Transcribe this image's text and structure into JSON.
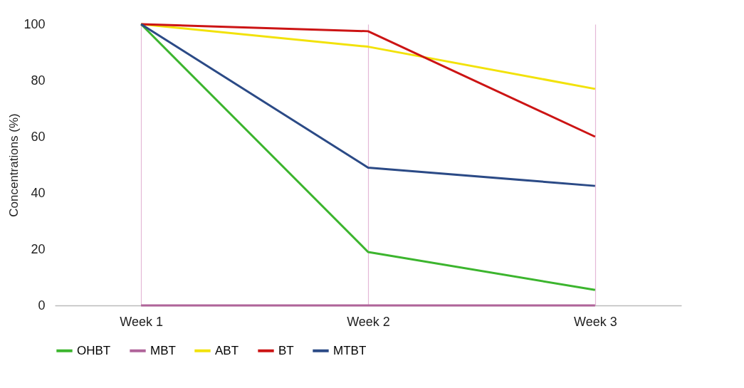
{
  "chart_data": {
    "type": "line",
    "ylabel": "Concentrations (%)",
    "categories": [
      "Week 1",
      "Week 2",
      "Week 3"
    ],
    "series": [
      {
        "name": "OHBT",
        "color": "#3cb52e",
        "values": [
          100,
          19,
          5.5
        ]
      },
      {
        "name": "MBT",
        "color": "#b0649a",
        "values": [
          0,
          0,
          0
        ]
      },
      {
        "name": "ABT",
        "color": "#f2e20a",
        "values": [
          100,
          92,
          77
        ]
      },
      {
        "name": "BT",
        "color": "#cc1414",
        "values": [
          100,
          97.5,
          60
        ]
      },
      {
        "name": "MTBT",
        "color": "#2b4a86",
        "values": [
          100,
          49,
          42.5
        ]
      }
    ],
    "ylim": [
      0,
      100
    ],
    "yticks": [
      0,
      20,
      40,
      60,
      80,
      100
    ],
    "grid": "x",
    "legend": "bottom",
    "marker": "none",
    "line_style": "solid"
  }
}
